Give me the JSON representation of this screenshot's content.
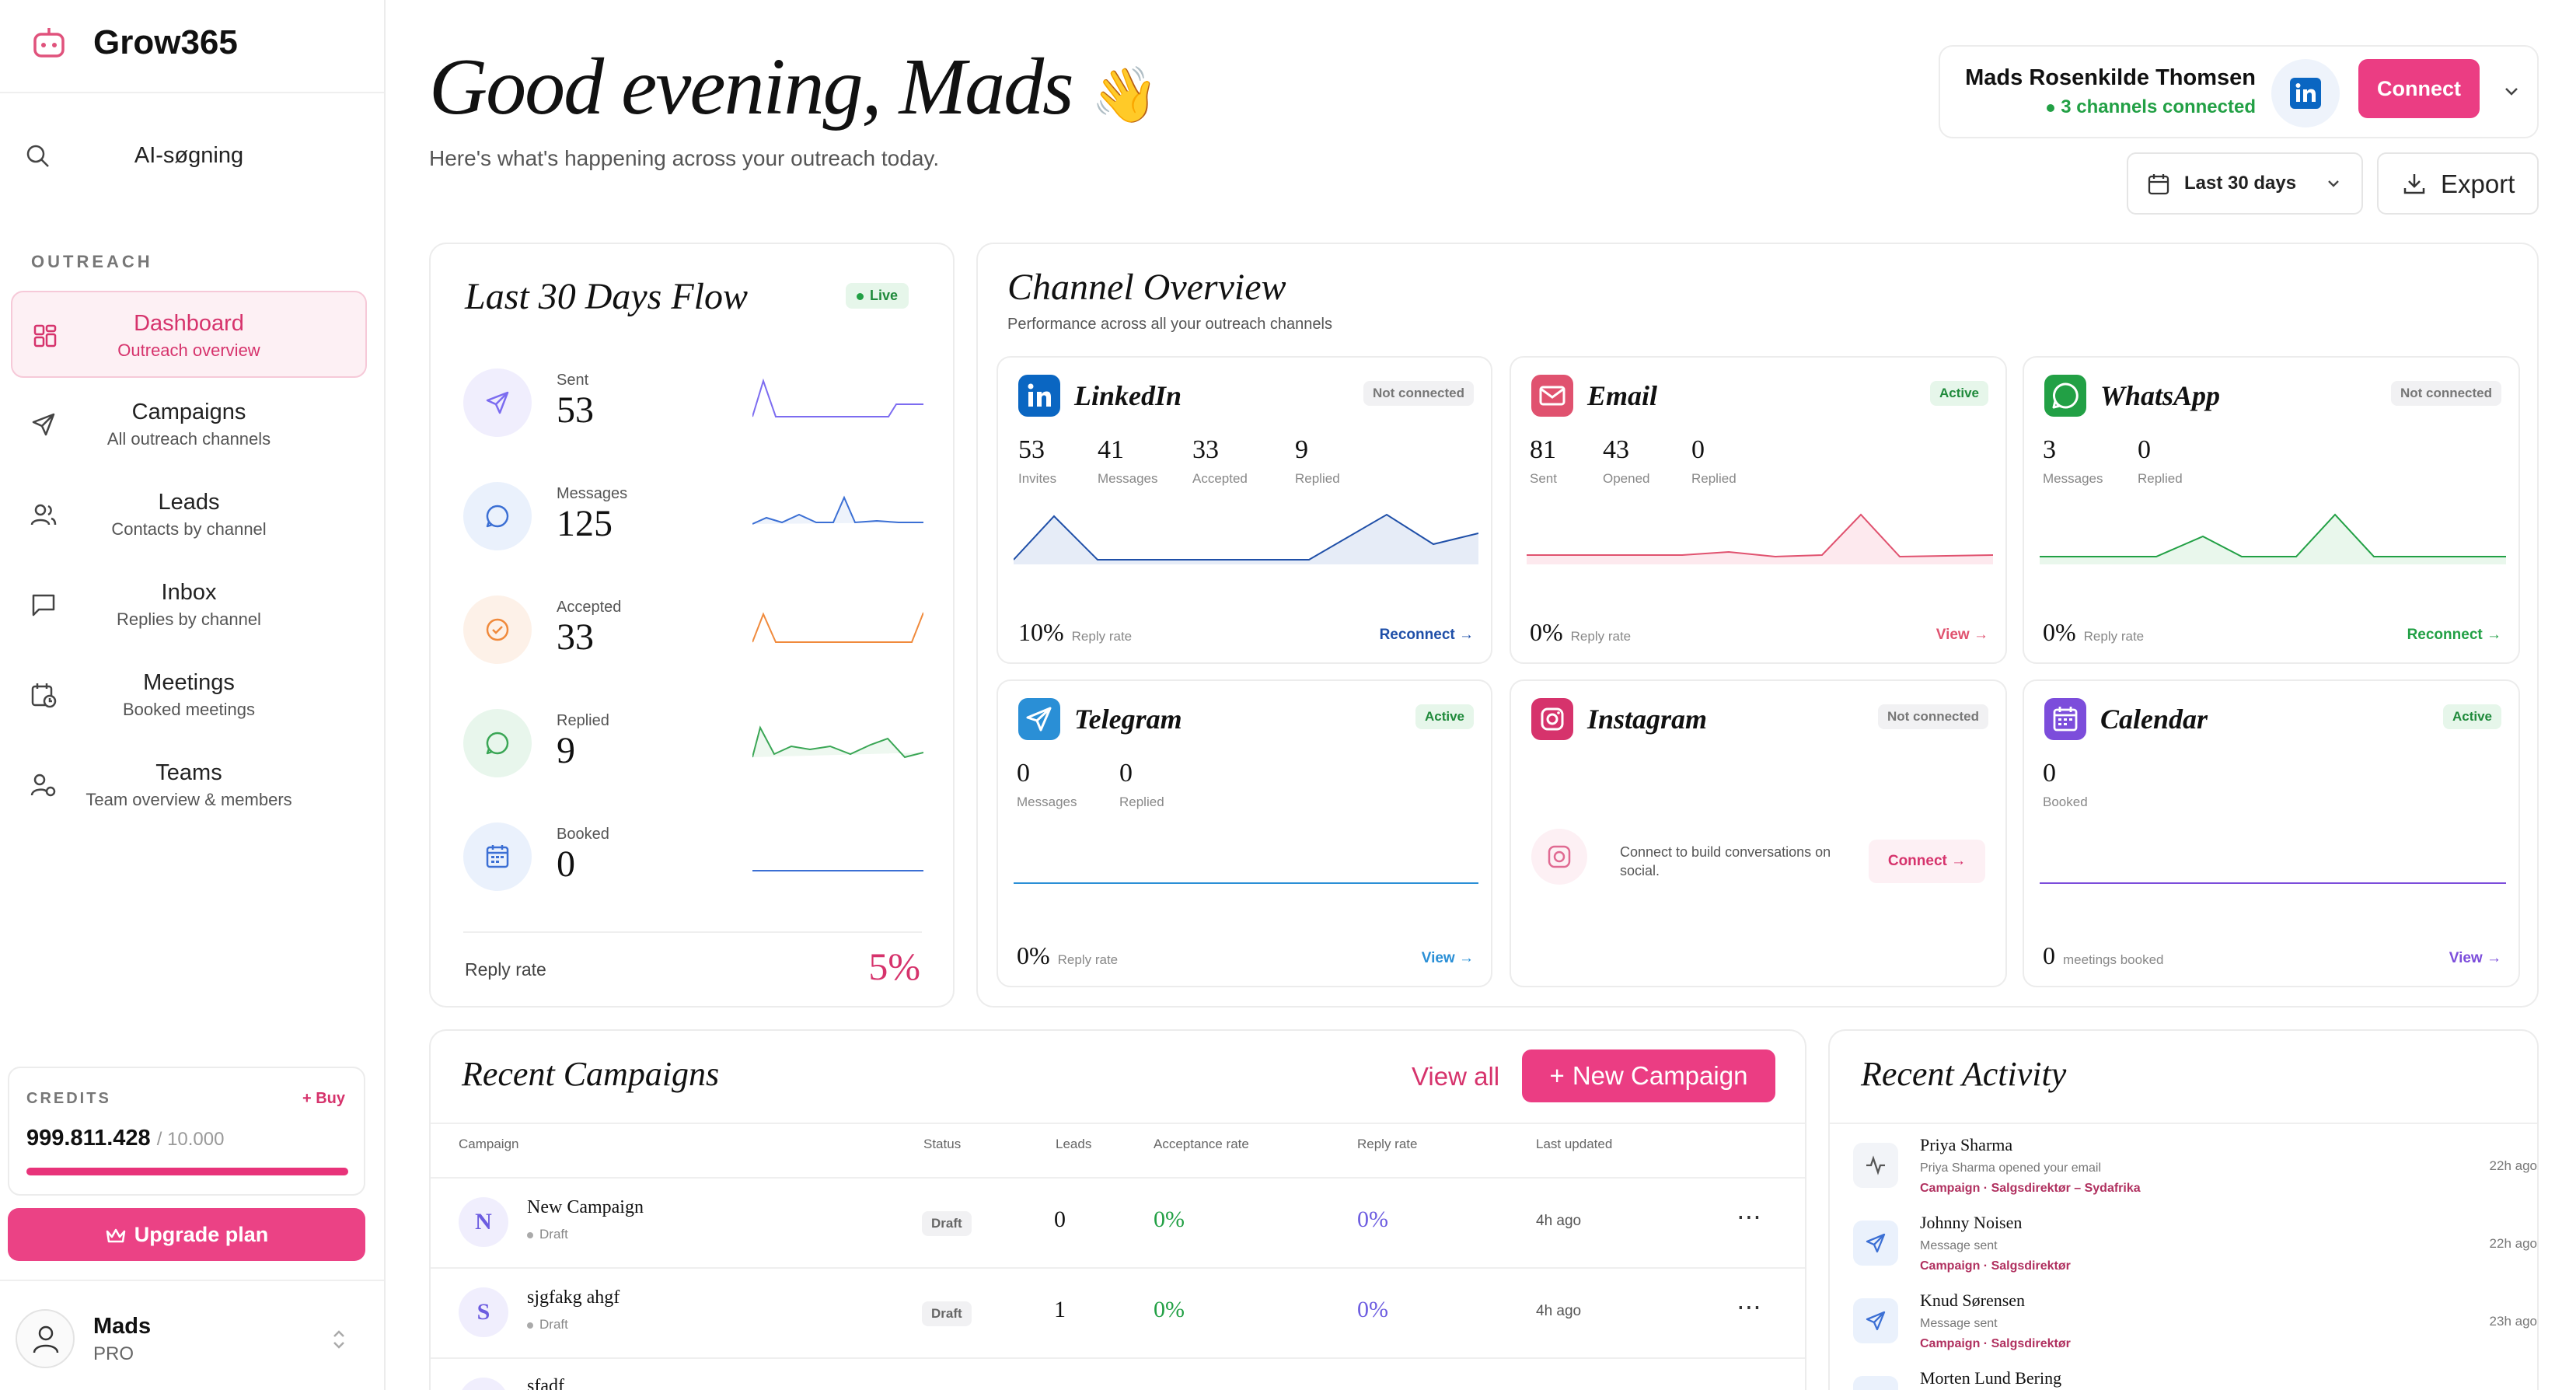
{
  "app": {
    "name": "Grow365"
  },
  "sidebar": {
    "search_label": "AI-søgning",
    "section_label": "OUTREACH",
    "items": [
      {
        "title": "Dashboard",
        "subtitle": "Outreach overview"
      },
      {
        "title": "Campaigns",
        "subtitle": "All outreach channels"
      },
      {
        "title": "Leads",
        "subtitle": "Contacts by channel"
      },
      {
        "title": "Inbox",
        "subtitle": "Replies by channel"
      },
      {
        "title": "Meetings",
        "subtitle": "Booked meetings"
      },
      {
        "title": "Teams",
        "subtitle": "Team overview & members"
      }
    ],
    "credits": {
      "label": "CREDITS",
      "buy_label": "+ Buy",
      "value": "999.811.428",
      "total": "/ 10.000",
      "fill_fraction": 1.0
    },
    "upgrade_label": "Upgrade plan",
    "user": {
      "name": "Mads",
      "plan": "PRO"
    }
  },
  "header": {
    "greeting": "Good evening, Mads",
    "emoji": "👋",
    "subtitle": "Here's what's happening across your outreach today.",
    "account": {
      "name": "Mads Rosenkilde Thomsen",
      "status": "3 channels connected",
      "connect_label": "Connect"
    },
    "date_range": "Last 30 days",
    "export_label": "Export"
  },
  "flow": {
    "title": "Last 30 Days Flow",
    "live_label": "Live",
    "rows": [
      {
        "label": "Sent",
        "value": "53",
        "color": "#7c6cf0"
      },
      {
        "label": "Messages",
        "value": "125",
        "color": "#3b6fd4"
      },
      {
        "label": "Accepted",
        "value": "33",
        "color": "#f08a3c"
      },
      {
        "label": "Replied",
        "value": "9",
        "color": "#3aa655"
      },
      {
        "label": "Booked",
        "value": "0",
        "color": "#3b6fd4"
      }
    ],
    "reply_rate_label": "Reply rate",
    "reply_rate_value": "5%"
  },
  "channels": {
    "title": "Channel Overview",
    "subtitle": "Performance across all your outreach channels",
    "items": [
      {
        "name": "LinkedIn",
        "badge": "Not connected",
        "stats": [
          {
            "v": "53",
            "l": "Invites"
          },
          {
            "v": "41",
            "l": "Messages"
          },
          {
            "v": "33",
            "l": "Accepted"
          },
          {
            "v": "9",
            "l": "Replied"
          }
        ],
        "foot_value": "10%",
        "foot_label": "Reply rate",
        "link": "Reconnect",
        "color": "#1f4fa8"
      },
      {
        "name": "Email",
        "badge": "Active",
        "stats": [
          {
            "v": "81",
            "l": "Sent"
          },
          {
            "v": "43",
            "l": "Opened"
          },
          {
            "v": "0",
            "l": "Replied"
          }
        ],
        "foot_value": "0%",
        "foot_label": "Reply rate",
        "link": "View",
        "color": "#e0526f"
      },
      {
        "name": "WhatsApp",
        "badge": "Not connected",
        "stats": [
          {
            "v": "3",
            "l": "Messages"
          },
          {
            "v": "0",
            "l": "Replied"
          }
        ],
        "foot_value": "0%",
        "foot_label": "Reply rate",
        "link": "Reconnect",
        "color": "#22a045"
      },
      {
        "name": "Telegram",
        "badge": "Active",
        "stats": [
          {
            "v": "0",
            "l": "Messages"
          },
          {
            "v": "0",
            "l": "Replied"
          }
        ],
        "foot_value": "0%",
        "foot_label": "Reply rate",
        "link": "View",
        "color": "#2a8fd6"
      },
      {
        "name": "Instagram",
        "badge": "Not connected",
        "connect_text": "Connect to build conversations on social.",
        "connect_label": "Connect",
        "color": "#d6336c"
      },
      {
        "name": "Calendar",
        "badge": "Active",
        "stats": [
          {
            "v": "0",
            "l": "Booked"
          }
        ],
        "foot_value": "0",
        "foot_label": "meetings booked",
        "link": "View",
        "color": "#7c4ddb"
      }
    ]
  },
  "campaigns": {
    "title": "Recent Campaigns",
    "view_all": "View all",
    "new_label": "New Campaign",
    "columns": [
      "Campaign",
      "Status",
      "Leads",
      "Acceptance rate",
      "Reply rate",
      "Last updated"
    ],
    "rows": [
      {
        "initial": "N",
        "name": "New Campaign",
        "state": "Draft",
        "status": "Draft",
        "leads": "0",
        "acceptance": "0%",
        "reply": "0%",
        "updated": "4h ago"
      },
      {
        "initial": "S",
        "name": "sjgfakg ahgf",
        "state": "Draft",
        "status": "Draft",
        "leads": "1",
        "acceptance": "0%",
        "reply": "0%",
        "updated": "4h ago"
      },
      {
        "initial": "",
        "name": "sfadf",
        "state": "",
        "status": "",
        "leads": "",
        "acceptance": "",
        "reply": "",
        "updated": ""
      }
    ]
  },
  "activity": {
    "title": "Recent Activity",
    "items": [
      {
        "name": "Priya Sharma",
        "desc": "Priya Sharma opened your email",
        "tag": "Campaign · Salgsdirektør – Sydafrika",
        "time": "22h ago",
        "icon": "activity-icon"
      },
      {
        "name": "Johnny Noisen",
        "desc": "Message sent",
        "tag": "Campaign · Salgsdirektør",
        "time": "22h ago",
        "icon": "send-icon"
      },
      {
        "name": "Knud Sørensen",
        "desc": "Message sent",
        "tag": "Campaign · Salgsdirektør",
        "time": "23h ago",
        "icon": "send-icon"
      },
      {
        "name": "Morten Lund Bering",
        "desc": "",
        "tag": "",
        "time": "",
        "icon": "send-icon"
      }
    ]
  }
}
